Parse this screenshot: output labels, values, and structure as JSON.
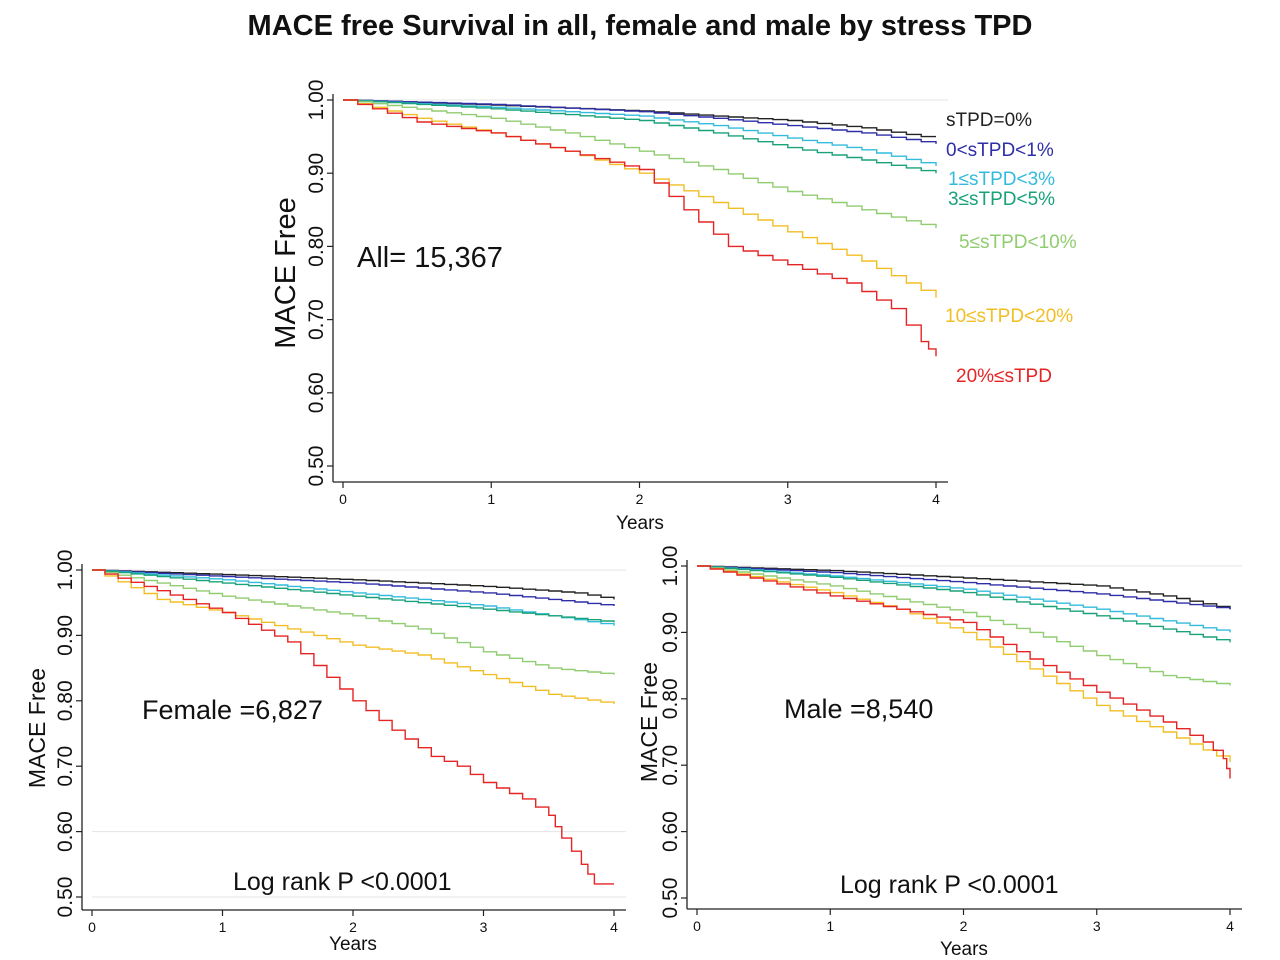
{
  "title": "MACE free Survival in all, female and male by stress TPD",
  "chart_data": [
    {
      "type": "line",
      "panel": "all",
      "annotation": "All= 15,367",
      "ylabel": "MACE Free",
      "xlabel": "Years",
      "xlim": [
        0,
        4
      ],
      "ylim": [
        0.5,
        1.0
      ],
      "x_ticks": [
        "0",
        "1",
        "2",
        "3",
        "4"
      ],
      "y_ticks": [
        "0.50",
        "0.60",
        "0.70",
        "0.80",
        "0.90",
        "1.00"
      ],
      "series": [
        {
          "name": "sTPD=0%",
          "color": "#222222",
          "x": [
            0,
            1,
            2,
            2.5,
            3,
            3.5,
            3.9,
            4
          ],
          "y": [
            1.0,
            0.993,
            0.985,
            0.978,
            0.972,
            0.962,
            0.95,
            0.95
          ]
        },
        {
          "name": "0<sTPD<1%",
          "color": "#2e2ea8",
          "x": [
            0,
            1,
            2,
            2.5,
            3,
            3.5,
            4
          ],
          "y": [
            1.0,
            0.994,
            0.984,
            0.975,
            0.965,
            0.955,
            0.94
          ]
        },
        {
          "name": "1≤sTPD<3%",
          "color": "#33bbdd",
          "x": [
            0,
            1,
            2,
            2.5,
            3,
            3.5,
            4
          ],
          "y": [
            1.0,
            0.99,
            0.978,
            0.965,
            0.948,
            0.932,
            0.91
          ]
        },
        {
          "name": "3≤sTPD<5%",
          "color": "#19a27a",
          "x": [
            0,
            1,
            2,
            2.5,
            3,
            3.5,
            4
          ],
          "y": [
            1.0,
            0.988,
            0.972,
            0.955,
            0.935,
            0.918,
            0.9
          ]
        },
        {
          "name": "5≤sTPD<10%",
          "color": "#90cc70",
          "x": [
            0,
            1,
            1.5,
            2,
            2.5,
            3,
            3.5,
            4
          ],
          "y": [
            1.0,
            0.975,
            0.955,
            0.93,
            0.905,
            0.875,
            0.85,
            0.825
          ]
        },
        {
          "name": "10≤sTPD<20%",
          "color": "#f2be26",
          "x": [
            0,
            0.5,
            1,
            1.5,
            2,
            2.5,
            3,
            3.5,
            4
          ],
          "y": [
            1.0,
            0.975,
            0.955,
            0.93,
            0.9,
            0.86,
            0.82,
            0.78,
            0.73
          ]
        },
        {
          "name": "20%≤sTPD",
          "color": "#e52424",
          "x": [
            0,
            0.5,
            1,
            1.5,
            2,
            2.3,
            2.6,
            3,
            3.4,
            3.7,
            3.9,
            4
          ],
          "y": [
            1.0,
            0.97,
            0.955,
            0.93,
            0.905,
            0.85,
            0.8,
            0.775,
            0.75,
            0.715,
            0.67,
            0.65
          ]
        }
      ]
    },
    {
      "type": "line",
      "panel": "female",
      "annotation": "Female =6,827",
      "footnote": "Log rank  P <0.0001",
      "ylabel": "MACE Free",
      "xlabel": "Years",
      "xlim": [
        0,
        4
      ],
      "ylim": [
        0.5,
        1.0
      ],
      "x_ticks": [
        "0",
        "1",
        "2",
        "3",
        "4"
      ],
      "y_ticks": [
        "0.50",
        "0.60",
        "0.70",
        "0.80",
        "0.90",
        "1.00"
      ],
      "series": [
        {
          "color": "#222222",
          "x": [
            0,
            1,
            2,
            3,
            3.7,
            4
          ],
          "y": [
            1.0,
            0.993,
            0.985,
            0.975,
            0.965,
            0.955
          ]
        },
        {
          "color": "#2e2ea8",
          "x": [
            0,
            1,
            2,
            3,
            4
          ],
          "y": [
            1.0,
            0.99,
            0.98,
            0.965,
            0.945
          ]
        },
        {
          "color": "#33bbdd",
          "x": [
            0,
            1,
            2,
            3,
            4
          ],
          "y": [
            1.0,
            0.985,
            0.965,
            0.945,
            0.915
          ]
        },
        {
          "color": "#19a27a",
          "x": [
            0,
            1,
            2,
            3,
            4
          ],
          "y": [
            1.0,
            0.98,
            0.96,
            0.94,
            0.92
          ]
        },
        {
          "color": "#90cc70",
          "x": [
            0,
            1,
            2,
            2.5,
            3,
            3.5,
            4
          ],
          "y": [
            1.0,
            0.96,
            0.93,
            0.91,
            0.875,
            0.85,
            0.84
          ]
        },
        {
          "color": "#f2be26",
          "x": [
            0,
            0.5,
            1,
            2,
            2.5,
            3,
            3.5,
            4
          ],
          "y": [
            1.0,
            0.955,
            0.935,
            0.885,
            0.87,
            0.84,
            0.81,
            0.795
          ]
        },
        {
          "color": "#e52424",
          "x": [
            0,
            0.4,
            1,
            1.5,
            2,
            2.3,
            2.6,
            2.8,
            3,
            3.3,
            3.5,
            3.6,
            3.75,
            3.85,
            4
          ],
          "y": [
            1.0,
            0.975,
            0.935,
            0.89,
            0.8,
            0.755,
            0.715,
            0.7,
            0.675,
            0.65,
            0.625,
            0.59,
            0.55,
            0.52,
            0.52
          ]
        }
      ]
    },
    {
      "type": "line",
      "panel": "male",
      "annotation": "Male =8,540",
      "footnote": "Log rank  P <0.0001",
      "ylabel": "MACE Free",
      "xlabel": "Years",
      "xlim": [
        0,
        4
      ],
      "ylim": [
        0.5,
        1.0
      ],
      "x_ticks": [
        "0",
        "1",
        "2",
        "3",
        "4"
      ],
      "y_ticks": [
        "0.50",
        "0.60",
        "0.70",
        "0.80",
        "0.90",
        "1.00"
      ],
      "series": [
        {
          "color": "#222222",
          "x": [
            0,
            1,
            2,
            3,
            3.5,
            4
          ],
          "y": [
            1.0,
            0.993,
            0.982,
            0.97,
            0.955,
            0.935
          ]
        },
        {
          "color": "#2e2ea8",
          "x": [
            0,
            1,
            2,
            3,
            4
          ],
          "y": [
            1.0,
            0.99,
            0.975,
            0.958,
            0.935
          ]
        },
        {
          "color": "#33bbdd",
          "x": [
            0,
            1,
            2,
            3,
            4
          ],
          "y": [
            1.0,
            0.985,
            0.965,
            0.935,
            0.9
          ]
        },
        {
          "color": "#19a27a",
          "x": [
            0,
            1,
            2,
            3,
            4
          ],
          "y": [
            1.0,
            0.983,
            0.96,
            0.925,
            0.885
          ]
        },
        {
          "color": "#90cc70",
          "x": [
            0,
            1,
            2,
            2.5,
            3,
            3.5,
            4
          ],
          "y": [
            1.0,
            0.97,
            0.93,
            0.9,
            0.865,
            0.835,
            0.82
          ]
        },
        {
          "color": "#f2be26",
          "x": [
            0,
            1,
            1.5,
            2,
            2.5,
            3,
            3.5,
            4
          ],
          "y": [
            1.0,
            0.96,
            0.935,
            0.9,
            0.845,
            0.79,
            0.75,
            0.705
          ]
        },
        {
          "color": "#e52424",
          "x": [
            0,
            1,
            1.5,
            2,
            2.5,
            3,
            3.5,
            3.8,
            3.95,
            4
          ],
          "y": [
            1.0,
            0.955,
            0.935,
            0.915,
            0.86,
            0.81,
            0.765,
            0.735,
            0.71,
            0.68
          ]
        }
      ]
    }
  ]
}
